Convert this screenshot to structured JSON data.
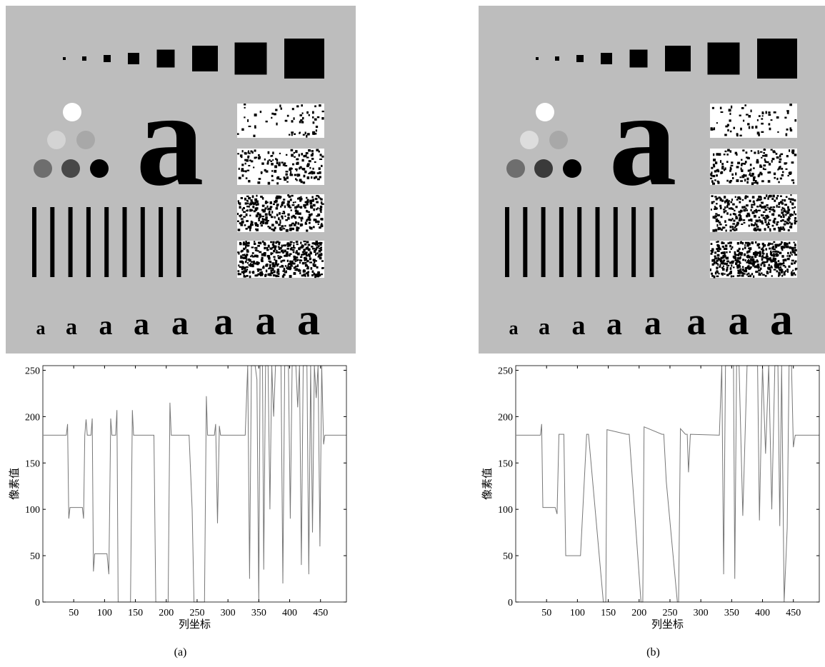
{
  "test_pattern": {
    "glyph": "a"
  },
  "chart_data": [
    {
      "type": "line",
      "caption": "(a)",
      "xlabel": "列坐标",
      "ylabel": "像素值",
      "color": "#777777",
      "xlim": [
        0,
        492
      ],
      "ylim": [
        0,
        255
      ],
      "xticks": [
        50,
        100,
        150,
        200,
        250,
        300,
        350,
        400,
        450
      ],
      "yticks": [
        0,
        50,
        100,
        150,
        200,
        250
      ],
      "x": [
        1,
        38,
        40,
        42,
        44,
        64,
        66,
        68,
        70,
        72,
        78,
        80,
        82,
        84,
        102,
        104,
        107,
        110,
        112,
        118,
        120,
        122,
        142,
        145,
        147,
        180,
        183,
        203,
        206,
        208,
        237,
        242,
        245,
        262,
        265,
        267,
        278,
        280,
        283,
        286,
        288,
        328,
        332,
        335,
        338,
        344,
        347,
        350,
        352,
        356,
        358,
        361,
        365,
        368,
        371,
        374,
        377,
        386,
        389,
        392,
        398,
        401,
        404,
        410,
        413,
        416,
        419,
        422,
        428,
        431,
        434,
        437,
        440,
        443,
        446,
        449,
        452,
        455,
        457,
        492
      ],
      "values": [
        180,
        180,
        192,
        90,
        102,
        102,
        90,
        180,
        197,
        180,
        180,
        198,
        33,
        52,
        52,
        52,
        30,
        198,
        180,
        180,
        207,
        0,
        0,
        207,
        180,
        180,
        0,
        0,
        215,
        180,
        180,
        100,
        0,
        0,
        222,
        180,
        180,
        192,
        85,
        190,
        180,
        180,
        255,
        25,
        255,
        255,
        240,
        0,
        255,
        255,
        35,
        255,
        255,
        100,
        255,
        200,
        255,
        255,
        20,
        255,
        255,
        90,
        255,
        255,
        210,
        255,
        40,
        255,
        255,
        30,
        255,
        75,
        255,
        220,
        255,
        60,
        255,
        170,
        180,
        180
      ]
    },
    {
      "type": "line",
      "caption": "(b)",
      "xlabel": "列坐标",
      "ylabel": "像素值",
      "color": "#777777",
      "xlim": [
        0,
        492
      ],
      "ylim": [
        0,
        255
      ],
      "xticks": [
        50,
        100,
        150,
        200,
        250,
        300,
        350,
        400,
        450
      ],
      "yticks": [
        0,
        50,
        100,
        150,
        200,
        250
      ],
      "x": [
        1,
        40,
        42,
        44,
        64,
        67,
        70,
        78,
        81,
        102,
        105,
        115,
        118,
        142,
        146,
        148,
        180,
        184,
        203,
        206,
        208,
        237,
        240,
        244,
        262,
        264,
        267,
        275,
        278,
        280,
        283,
        330,
        334,
        337,
        340,
        350,
        353,
        355,
        358,
        362,
        368,
        375,
        378,
        385,
        392,
        395,
        400,
        405,
        410,
        415,
        420,
        425,
        428,
        431,
        435,
        440,
        443,
        447,
        450,
        453,
        455,
        492
      ],
      "values": [
        180,
        180,
        192,
        102,
        102,
        95,
        181,
        181,
        50,
        50,
        50,
        181,
        181,
        0,
        0,
        186,
        181,
        181,
        0,
        0,
        189,
        181,
        181,
        130,
        0,
        0,
        187,
        181,
        181,
        140,
        181,
        180,
        255,
        30,
        255,
        255,
        255,
        25,
        255,
        255,
        93,
        255,
        255,
        255,
        255,
        88,
        255,
        160,
        255,
        100,
        255,
        255,
        82,
        255,
        0,
        80,
        255,
        255,
        167,
        180,
        180,
        180
      ]
    }
  ]
}
